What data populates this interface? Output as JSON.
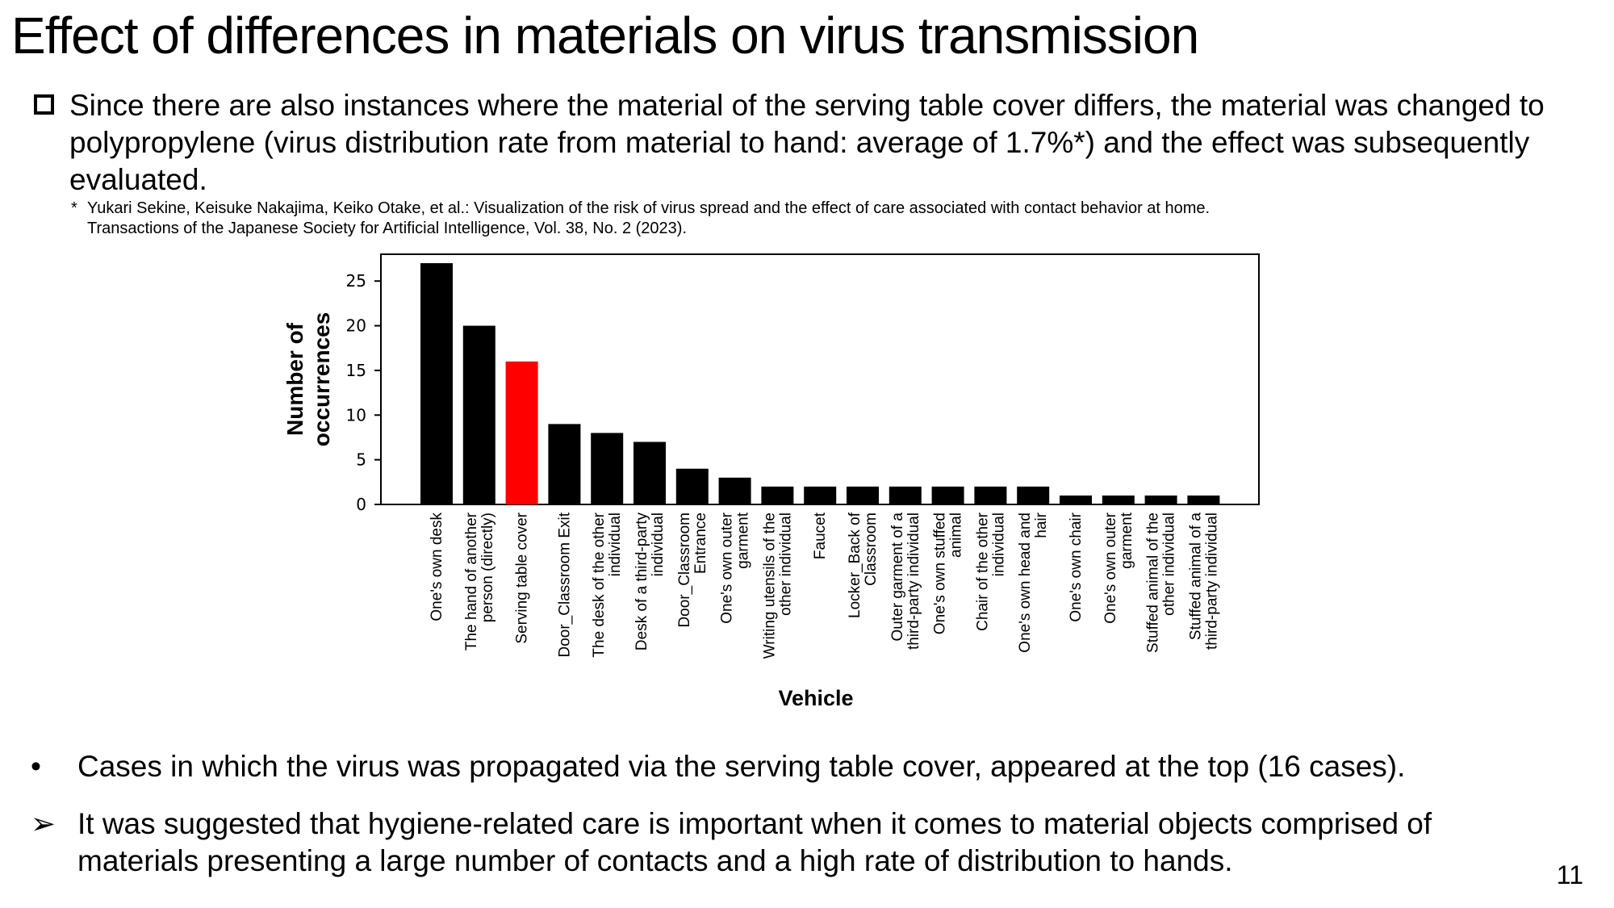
{
  "title": "Effect of differences in materials on virus transmission",
  "intro": {
    "marker": "square-bullet-icon",
    "text": "Since there are also instances where the material of the serving table cover differs, the material was changed to polypropylene (virus distribution rate from material to hand: average of 1.7%*) and the effect was subsequently evaluated."
  },
  "footnote": {
    "marker": "*",
    "line1": "Yukari Sekine, Keisuke Nakajima, Keiko Otake, et al.: Visualization of the risk of virus spread and the effect of care associated with contact behavior at home.",
    "line2": "Transactions of the Japanese Society for Artificial Intelligence, Vol. 38, No. 2 (2023)."
  },
  "chart_data": {
    "type": "bar",
    "title": "",
    "xlabel": "Vehicle",
    "ylabel": "Number of occurrences",
    "ylim": [
      0,
      28
    ],
    "yticks": [
      0,
      5,
      10,
      15,
      20,
      25
    ],
    "grid": false,
    "legend": "none",
    "categories": [
      [
        "One's own desk"
      ],
      [
        "The hand of another",
        "person (directly)"
      ],
      [
        "Serving table cover"
      ],
      [
        "Door_Classroom Exit"
      ],
      [
        "The desk of the other",
        "individual"
      ],
      [
        "Desk of a third-party",
        "individual"
      ],
      [
        "Door_Classroom",
        "Entrance"
      ],
      [
        "One's own outer",
        "garment"
      ],
      [
        "Writing utensils of the",
        "other individual"
      ],
      [
        "Faucet"
      ],
      [
        "Locker_Back of",
        "Classroom"
      ],
      [
        "Outer garment of a",
        "third-party individual"
      ],
      [
        "One's own stuffed",
        "animal"
      ],
      [
        "Chair of the other",
        "individual"
      ],
      [
        "One's own head and",
        "hair"
      ],
      [
        "One's own chair"
      ],
      [
        "One's own outer",
        "garment"
      ],
      [
        "Stuffed animal of the",
        "other individual"
      ],
      [
        "Stuffed animal of a",
        "third-party individual"
      ]
    ],
    "values": [
      27,
      20,
      16,
      9,
      8,
      7,
      4,
      3,
      2,
      2,
      2,
      2,
      2,
      2,
      2,
      1,
      1,
      1,
      1
    ],
    "highlight_index": 2,
    "colors": {
      "default": "#000000",
      "highlight": "#ff0000"
    }
  },
  "bullets": [
    {
      "marker": "•",
      "text": "Cases in which the virus was propagated via the serving table cover, appeared at the top (16 cases)."
    },
    {
      "marker": "➢",
      "text": "It was suggested that hygiene-related care is important when it comes to material objects comprised of materials presenting a large number of contacts and a high rate of distribution to hands."
    }
  ],
  "page_number": "11"
}
